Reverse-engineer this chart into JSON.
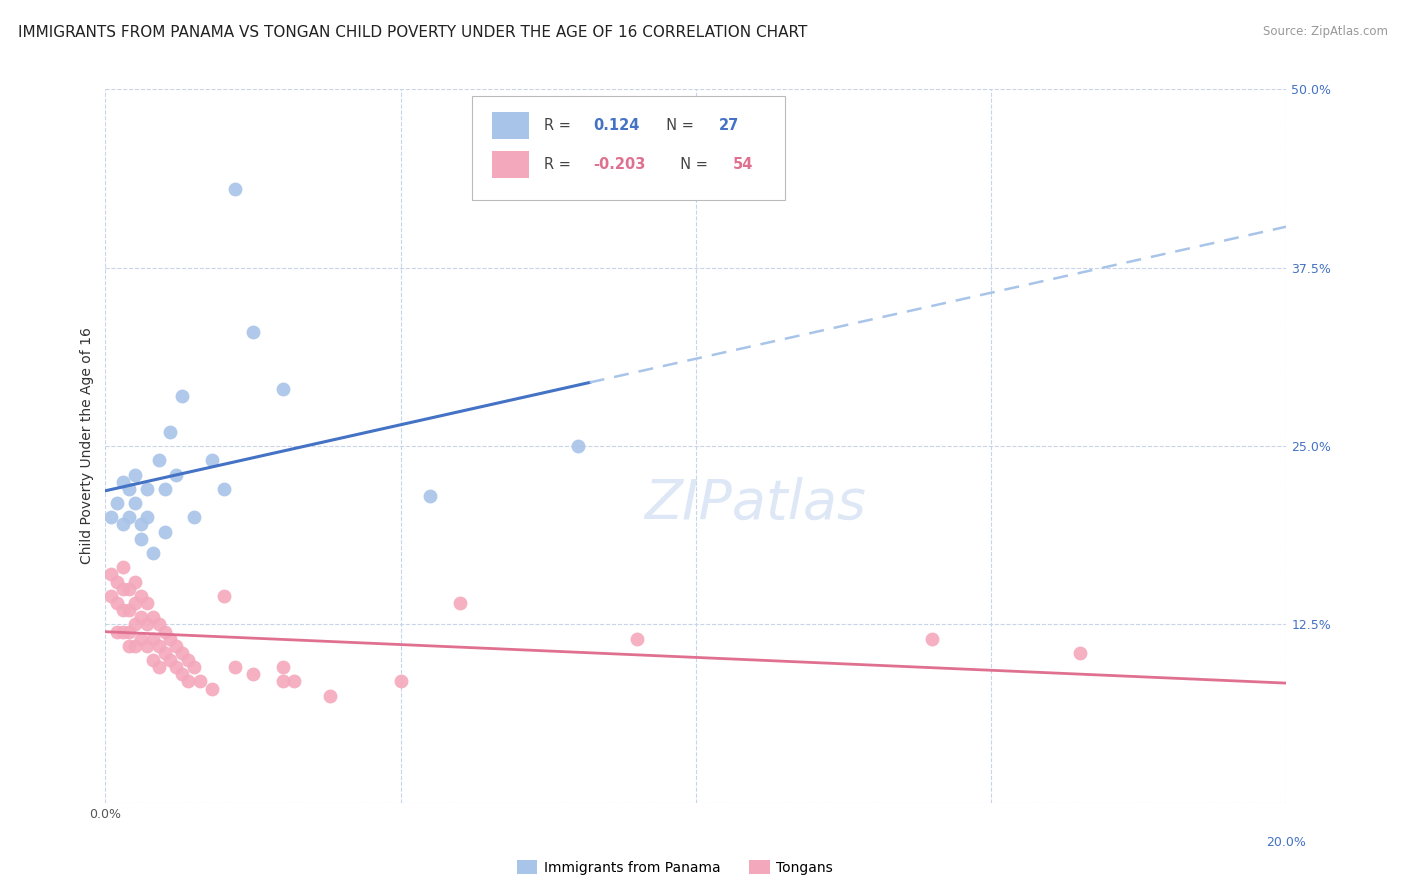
{
  "title": "IMMIGRANTS FROM PANAMA VS TONGAN CHILD POVERTY UNDER THE AGE OF 16 CORRELATION CHART",
  "source": "Source: ZipAtlas.com",
  "ylabel": "Child Poverty Under the Age of 16",
  "y_ticks": [
    0.0,
    0.125,
    0.25,
    0.375,
    0.5
  ],
  "y_tick_labels": [
    "",
    "12.5%",
    "25.0%",
    "37.5%",
    "50.0%"
  ],
  "x_ticks": [
    0.0,
    0.05,
    0.1,
    0.15,
    0.2
  ],
  "x_lim": [
    0.0,
    0.2
  ],
  "y_lim": [
    0.0,
    0.5
  ],
  "panama_R": 0.124,
  "panama_N": 27,
  "tongan_R": -0.203,
  "tongan_N": 54,
  "panama_color": "#a8c4e8",
  "tongan_color": "#f4a8bc",
  "panama_line_color": "#4472c4",
  "tongan_line_color": "#e07090",
  "dashed_line_color": "#a8c4e8",
  "panama_scatter_x": [
    0.001,
    0.002,
    0.003,
    0.003,
    0.004,
    0.004,
    0.005,
    0.005,
    0.006,
    0.006,
    0.007,
    0.007,
    0.008,
    0.009,
    0.01,
    0.01,
    0.011,
    0.012,
    0.013,
    0.015,
    0.018,
    0.02,
    0.022,
    0.025,
    0.03,
    0.055,
    0.08
  ],
  "panama_scatter_y": [
    0.2,
    0.21,
    0.225,
    0.195,
    0.22,
    0.2,
    0.21,
    0.23,
    0.195,
    0.185,
    0.22,
    0.2,
    0.175,
    0.24,
    0.22,
    0.19,
    0.26,
    0.23,
    0.285,
    0.2,
    0.24,
    0.22,
    0.43,
    0.33,
    0.29,
    0.215,
    0.25
  ],
  "tongan_scatter_x": [
    0.001,
    0.001,
    0.002,
    0.002,
    0.002,
    0.003,
    0.003,
    0.003,
    0.003,
    0.004,
    0.004,
    0.004,
    0.004,
    0.005,
    0.005,
    0.005,
    0.005,
    0.006,
    0.006,
    0.006,
    0.007,
    0.007,
    0.007,
    0.008,
    0.008,
    0.008,
    0.009,
    0.009,
    0.009,
    0.01,
    0.01,
    0.011,
    0.011,
    0.012,
    0.012,
    0.013,
    0.013,
    0.014,
    0.014,
    0.015,
    0.016,
    0.018,
    0.02,
    0.022,
    0.025,
    0.03,
    0.03,
    0.032,
    0.038,
    0.05,
    0.06,
    0.09,
    0.14,
    0.165
  ],
  "tongan_scatter_y": [
    0.16,
    0.145,
    0.155,
    0.14,
    0.12,
    0.165,
    0.15,
    0.135,
    0.12,
    0.15,
    0.135,
    0.12,
    0.11,
    0.155,
    0.14,
    0.125,
    0.11,
    0.145,
    0.13,
    0.115,
    0.14,
    0.125,
    0.11,
    0.13,
    0.115,
    0.1,
    0.125,
    0.11,
    0.095,
    0.12,
    0.105,
    0.115,
    0.1,
    0.11,
    0.095,
    0.105,
    0.09,
    0.1,
    0.085,
    0.095,
    0.085,
    0.08,
    0.145,
    0.095,
    0.09,
    0.085,
    0.095,
    0.085,
    0.075,
    0.085,
    0.14,
    0.115,
    0.115,
    0.105
  ],
  "watermark": "ZIPatlas",
  "background_color": "#ffffff",
  "grid_color": "#c8d4e8",
  "title_fontsize": 11,
  "axis_label_fontsize": 10,
  "tick_fontsize": 9
}
